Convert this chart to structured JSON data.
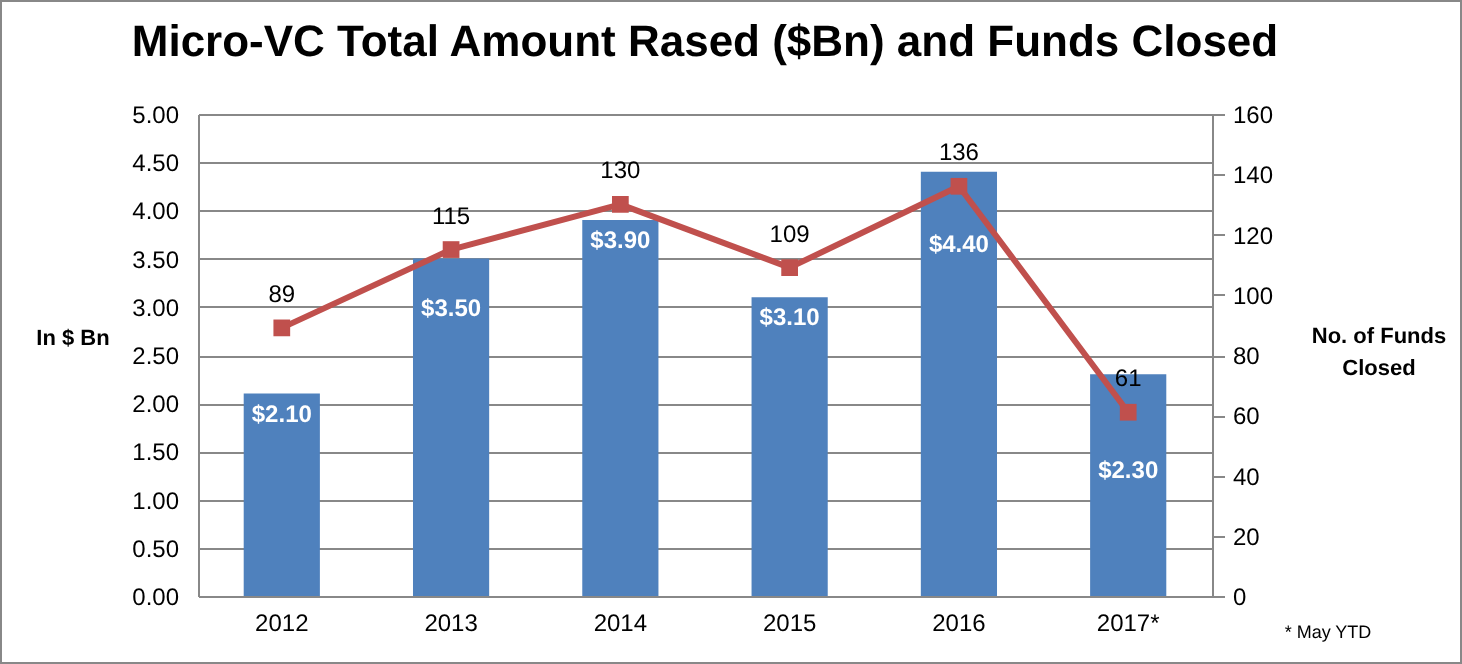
{
  "chart_data": {
    "type": "bar",
    "title": "Micro-VC Total Amount Rased ($Bn) and Funds Closed",
    "categories": [
      "2012",
      "2013",
      "2014",
      "2015",
      "2016",
      "2017*"
    ],
    "series": [
      {
        "axis": "y",
        "color": "#4f81bd",
        "values": [
          2.1,
          3.5,
          3.9,
          3.1,
          4.4,
          2.3
        ],
        "value_labels": [
          "$2.10",
          "$3.50",
          "$3.90",
          "$3.10",
          "$4.40",
          "$2.30"
        ]
      },
      {
        "type": "line",
        "axis": "y2",
        "color": "#c0504d",
        "marker": "square",
        "values": [
          89,
          115,
          130,
          109,
          136,
          61
        ],
        "value_labels": [
          "89",
          "115",
          "130",
          "109",
          "136",
          "61"
        ]
      }
    ],
    "ylabel": "In $ Bn",
    "y2label": "No. of Funds Closed",
    "ylim": [
      0,
      5
    ],
    "yticks": [
      {
        "value": 0,
        "label": "0.00"
      },
      {
        "value": 0.5,
        "label": "0.50"
      },
      {
        "value": 1,
        "label": "1.00"
      },
      {
        "value": 1.5,
        "label": "1.50"
      },
      {
        "value": 2,
        "label": "2.00"
      },
      {
        "value": 2.5,
        "label": "2.50"
      },
      {
        "value": 3,
        "label": "3.00"
      },
      {
        "value": 3.5,
        "label": "3.50"
      },
      {
        "value": 4,
        "label": "4.00"
      },
      {
        "value": 4.5,
        "label": "4.50"
      },
      {
        "value": 5,
        "label": "5.00"
      }
    ],
    "y2lim": [
      0,
      160
    ],
    "y2ticks": [
      0,
      20,
      40,
      60,
      80,
      100,
      120,
      140,
      160
    ],
    "grid": "y",
    "annotations": [
      "* May YTD"
    ]
  }
}
